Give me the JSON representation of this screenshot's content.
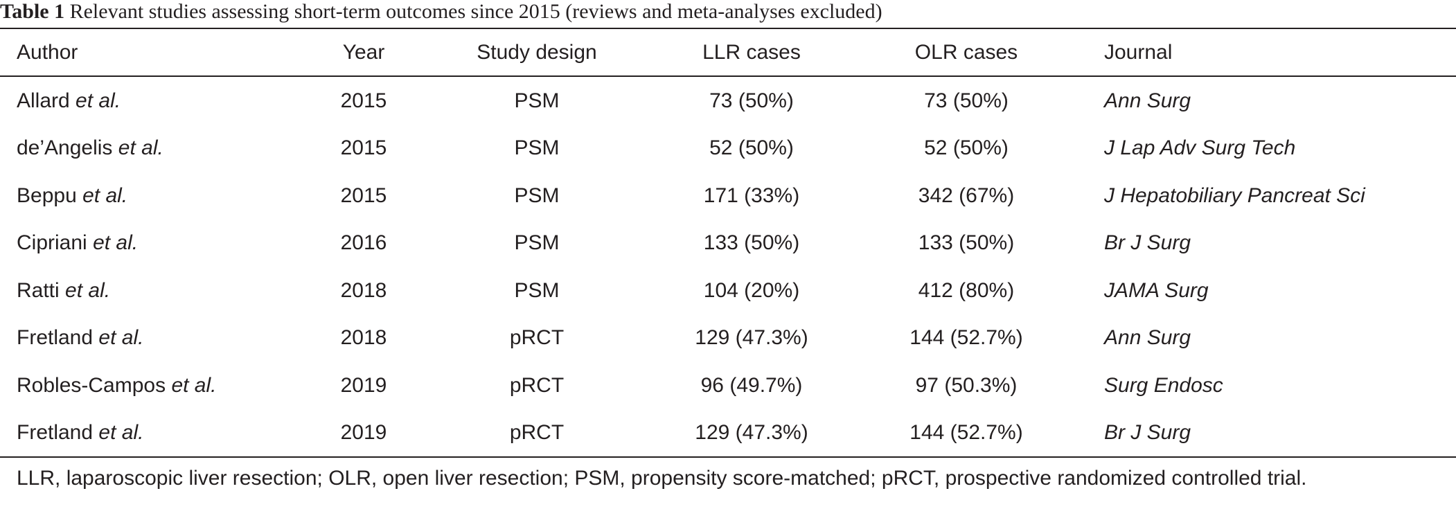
{
  "table": {
    "label": "Table 1",
    "caption": "Relevant studies assessing short-term outcomes since 2015 (reviews and meta-analyses excluded)",
    "columns": [
      "Author",
      "Year",
      "Study design",
      "LLR cases",
      "OLR cases",
      "Journal"
    ],
    "rows": [
      {
        "author": "Allard",
        "etal": "et al.",
        "year": "2015",
        "design": "PSM",
        "llr": "73 (50%)",
        "olr": "73 (50%)",
        "journal": "Ann Surg"
      },
      {
        "author": "de’Angelis",
        "etal": "et al.",
        "year": "2015",
        "design": "PSM",
        "llr": "52 (50%)",
        "olr": "52 (50%)",
        "journal": "J Lap Adv Surg Tech"
      },
      {
        "author": "Beppu",
        "etal": "et al.",
        "year": "2015",
        "design": "PSM",
        "llr": "171 (33%)",
        "olr": "342 (67%)",
        "journal": "J Hepatobiliary Pancreat Sci"
      },
      {
        "author": "Cipriani",
        "etal": "et al.",
        "year": "2016",
        "design": "PSM",
        "llr": "133 (50%)",
        "olr": "133 (50%)",
        "journal": "Br J Surg"
      },
      {
        "author": "Ratti",
        "etal": "et al.",
        "year": "2018",
        "design": "PSM",
        "llr": "104 (20%)",
        "olr": "412 (80%)",
        "journal": "JAMA Surg"
      },
      {
        "author": "Fretland",
        "etal": "et al.",
        "year": "2018",
        "design": "pRCT",
        "llr": "129 (47.3%)",
        "olr": "144 (52.7%)",
        "journal": "Ann Surg"
      },
      {
        "author": "Robles-Campos",
        "etal": "et al.",
        "year": "2019",
        "design": "pRCT",
        "llr": "96 (49.7%)",
        "olr": "97 (50.3%)",
        "journal": "Surg Endosc"
      },
      {
        "author": "Fretland",
        "etal": "et al.",
        "year": "2019",
        "design": "pRCT",
        "llr": "129 (47.3%)",
        "olr": "144 (52.7%)",
        "journal": "Br J Surg"
      }
    ],
    "footnote": "LLR, laparoscopic liver resection; OLR, open liver resection; PSM, propensity score-matched; pRCT, prospective randomized controlled trial."
  }
}
